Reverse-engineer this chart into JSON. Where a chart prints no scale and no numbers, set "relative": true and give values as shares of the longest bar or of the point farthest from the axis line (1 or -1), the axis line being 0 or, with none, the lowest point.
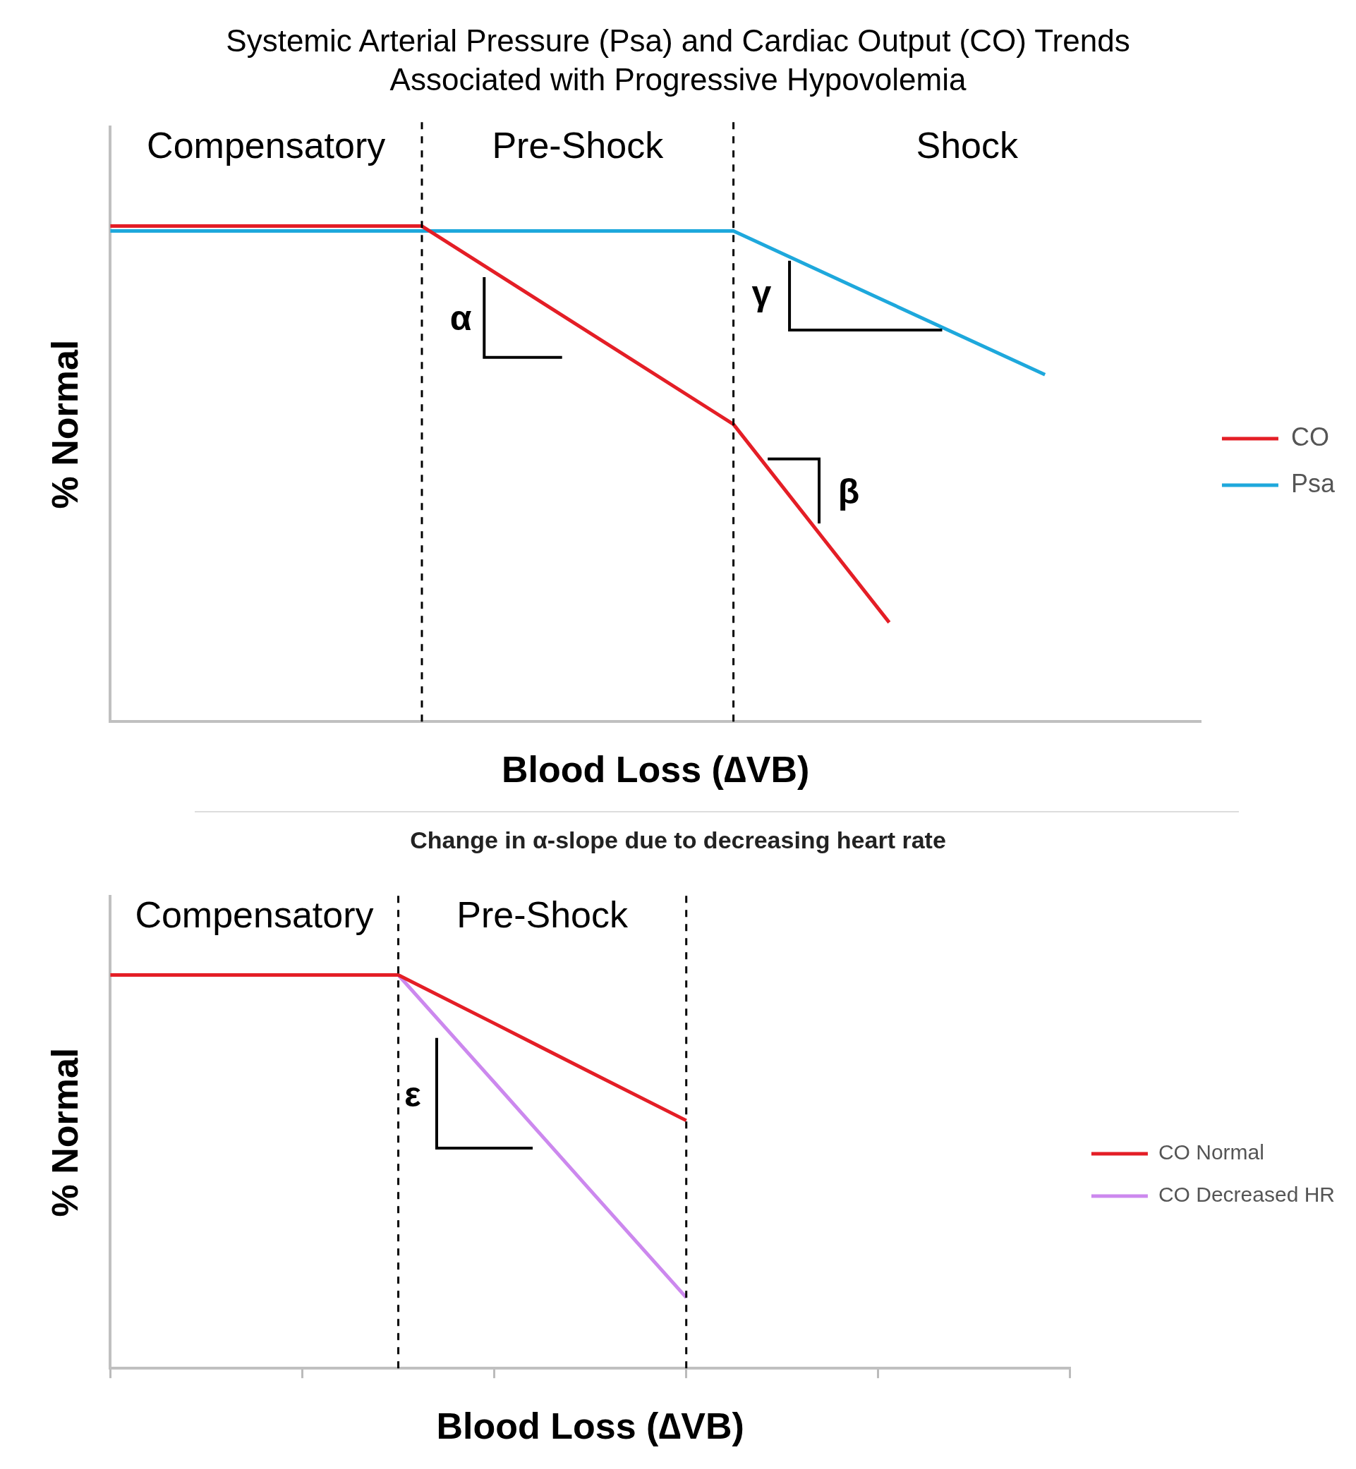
{
  "chart_data": [
    {
      "type": "line",
      "title": "Systemic Arterial Pressure (Psa) and Cardiac Output (CO) Trends Associated with Progressive Hypovolemia",
      "xlabel": "Blood Loss (∆VB)",
      "ylabel": "% Normal",
      "relative": true,
      "categories": [
        null,
        null,
        null,
        null,
        null,
        null,
        null,
        null
      ],
      "grid": false,
      "legend": "right",
      "marker": "none",
      "line_style": "solid",
      "series": [
        {
          "name": "CO",
          "color": "#e41e26",
          "values": [
            1,
            1,
            1,
            0.8,
            0.6,
            0.2,
            null,
            null
          ]
        },
        {
          "name": "Psa",
          "color": "#1ea8dc",
          "values": [
            0.99,
            0.99,
            0.99,
            0.99,
            0.99,
            0.845,
            0.7,
            null
          ]
        }
      ],
      "annotations": [
        "Compensatory",
        "Pre-Shock",
        "Shock",
        "α",
        "γ",
        "β"
      ]
    },
    {
      "type": "line",
      "title": "Change in α-slope due to decreasing heart rate",
      "xlabel": "Blood Loss (∆VB)",
      "ylabel": "% Normal",
      "relative": true,
      "categories": [
        null,
        null,
        null,
        null,
        null,
        null,
        null,
        null,
        null,
        null,
        null
      ],
      "grid": false,
      "legend": "right",
      "marker": "none",
      "line_style": "solid",
      "series": [
        {
          "name": "CO Normal",
          "color": "#e41e26",
          "values": [
            1,
            1,
            1,
            1,
            0.877,
            0.753,
            0.63,
            null,
            null,
            null,
            null
          ]
        },
        {
          "name": "CO Decreased HR",
          "color": "#cc88ee",
          "values": [
            null,
            null,
            null,
            1,
            0.727,
            0.453,
            0.18,
            null,
            null,
            null,
            null
          ]
        }
      ],
      "annotations": [
        "Compensatory",
        "Pre-Shock",
        "ε"
      ]
    }
  ]
}
